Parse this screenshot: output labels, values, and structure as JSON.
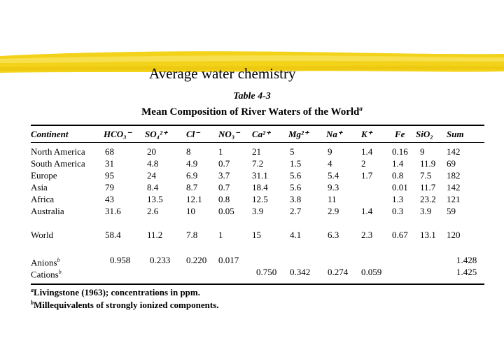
{
  "slide": {
    "title": "Average water chemistry"
  },
  "table": {
    "number": "Table 4-3",
    "caption": "Mean Composition of River Waters of the World",
    "caption_mark": "a",
    "columns": [
      "Continent",
      "HCO₃⁻",
      "SO₄²⁺",
      "Cl⁻",
      "NO₃⁻",
      "Ca²⁺",
      "Mg²⁺",
      "Na⁺",
      "K⁺",
      "Fe",
      "SiO₂",
      "Sum"
    ],
    "rows": [
      {
        "label": "North America",
        "values": [
          "68",
          "20",
          "8",
          "1",
          "21",
          "5",
          "9",
          "1.4",
          "0.16",
          "9",
          "142"
        ]
      },
      {
        "label": "South America",
        "values": [
          "31",
          "4.8",
          "4.9",
          "0.7",
          "7.2",
          "1.5",
          "4",
          "2",
          "1.4",
          "11.9",
          "69"
        ]
      },
      {
        "label": "Europe",
        "values": [
          "95",
          "24",
          "6.9",
          "3.7",
          "31.1",
          "5.6",
          "5.4",
          "1.7",
          "0.8",
          "7.5",
          "182"
        ]
      },
      {
        "label": "Asia",
        "values": [
          "79",
          "8.4",
          "8.7",
          "0.7",
          "18.4",
          "5.6",
          "9.3",
          "",
          "0.01",
          "11.7",
          "142"
        ]
      },
      {
        "label": "Africa",
        "values": [
          "43",
          "13.5",
          "12.1",
          "0.8",
          "12.5",
          "3.8",
          "11",
          "",
          "1.3",
          "23.2",
          "121"
        ]
      },
      {
        "label": "Australia",
        "values": [
          "31.6",
          "2.6",
          "10",
          "0.05",
          "3.9",
          "2.7",
          "2.9",
          "1.4",
          "0.3",
          "3.9",
          "59"
        ]
      }
    ],
    "world": {
      "label": "World",
      "values": [
        "58.4",
        "11.2",
        "7.8",
        "1",
        "15",
        "4.1",
        "6.3",
        "2.3",
        "0.67",
        "13.1",
        "120"
      ]
    },
    "equivalents": [
      {
        "label": "Anions",
        "mark": "b",
        "values": [
          "0.958",
          "0.233",
          "0.220",
          "0.017",
          "",
          "",
          "",
          "",
          "",
          "",
          "1.428"
        ]
      },
      {
        "label": "Cations",
        "mark": "b",
        "values": [
          "",
          "",
          "",
          "",
          "0.750",
          "0.342",
          "0.274",
          "0.059",
          "",
          "",
          "1.425"
        ]
      }
    ],
    "footnotes": [
      {
        "mark": "a",
        "text": "Livingstone (1963); concentrations in ppm."
      },
      {
        "mark": "b",
        "text": "Millequivalents of strongly ionized components."
      }
    ]
  },
  "colors": {
    "highlighter": "#f3d21a",
    "highlighter_light": "#f8e25a"
  }
}
